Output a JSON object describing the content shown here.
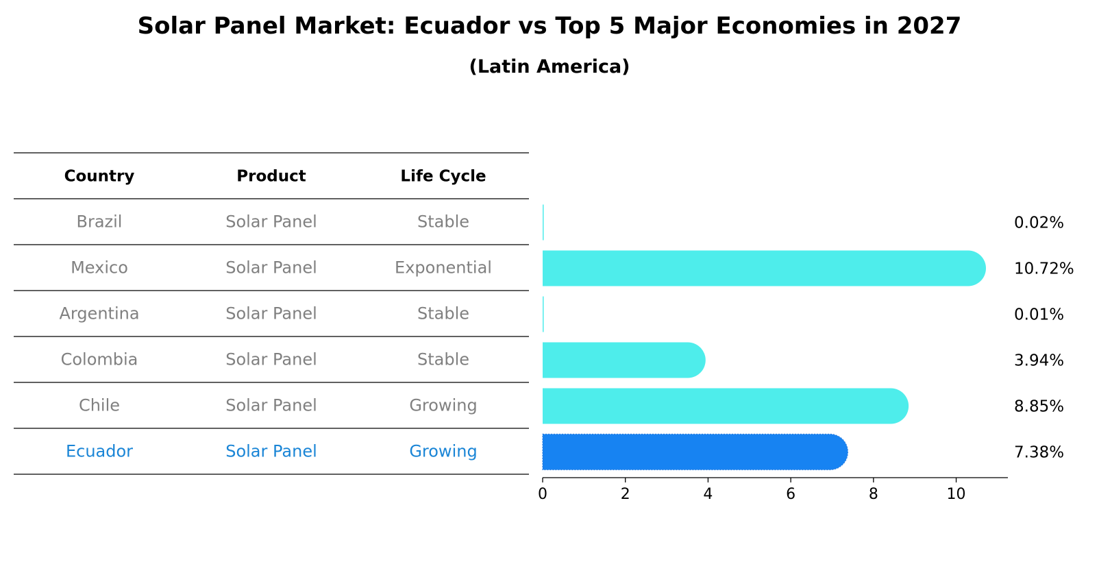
{
  "chart_data": {
    "type": "bar",
    "orientation": "horizontal",
    "title": "Solar Panel Market: Ecuador vs Top 5 Major Economies in 2027",
    "subtitle": "(Latin America)",
    "table": {
      "columns": [
        "Country",
        "Product",
        "Life Cycle"
      ],
      "rows": [
        {
          "country": "Brazil",
          "product": "Solar Panel",
          "life_cycle": "Stable"
        },
        {
          "country": "Mexico",
          "product": "Solar Panel",
          "life_cycle": "Exponential"
        },
        {
          "country": "Argentina",
          "product": "Solar Panel",
          "life_cycle": "Stable"
        },
        {
          "country": "Colombia",
          "product": "Solar Panel",
          "life_cycle": "Stable"
        },
        {
          "country": "Chile",
          "product": "Solar Panel",
          "life_cycle": "Growing"
        },
        {
          "country": "Ecuador",
          "product": "Solar Panel",
          "life_cycle": "Growing"
        }
      ]
    },
    "categories": [
      "Brazil",
      "Mexico",
      "Argentina",
      "Colombia",
      "Chile",
      "Ecuador"
    ],
    "values": [
      0.02,
      10.72,
      0.01,
      3.94,
      8.85,
      7.38
    ],
    "value_labels": [
      "0.02%",
      "10.72%",
      "0.01%",
      "3.94%",
      "8.85%",
      "7.38%"
    ],
    "highlight": "Ecuador",
    "xlim": [
      0,
      11.25
    ],
    "xticks": [
      0,
      2,
      4,
      6,
      8,
      10
    ],
    "grid": false,
    "colors": {
      "bar": "#4EEDEB",
      "highlight_bar": "#1783F2",
      "table_text": "#808080",
      "highlight_text": "#1A85D6",
      "header_text": "#000000"
    }
  }
}
